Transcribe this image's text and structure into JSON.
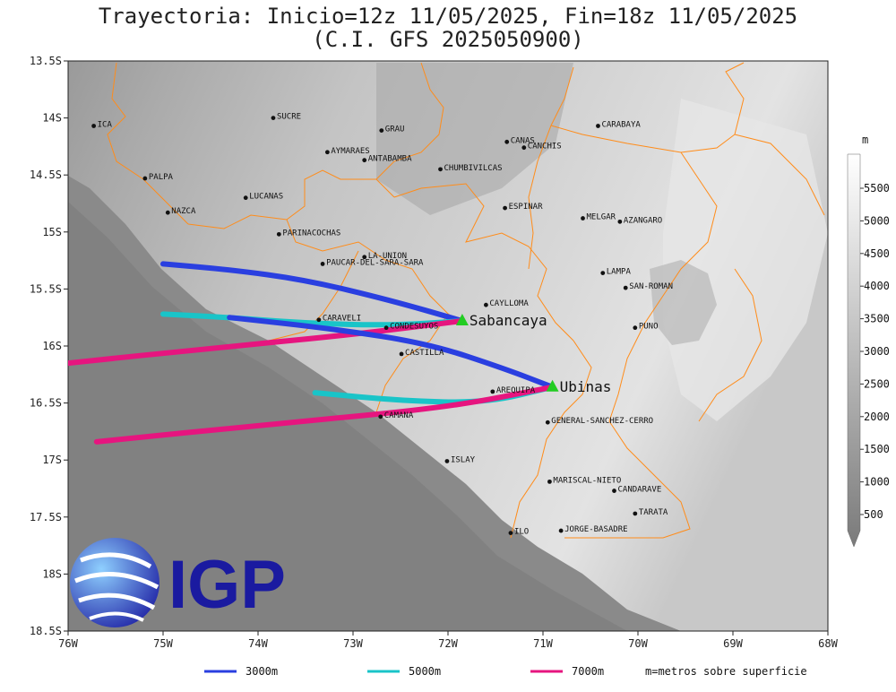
{
  "title": {
    "line1": "Trayectoria: Inicio=12z 11/05/2025, Fin=18z 11/05/2025",
    "line2": "(C.I. GFS 2025050900)"
  },
  "map": {
    "lon_range": [
      -76,
      -68
    ],
    "lat_range": [
      -18.5,
      -13.5
    ],
    "x_ticks": [
      "76W",
      "75W",
      "74W",
      "73W",
      "72W",
      "71W",
      "70W",
      "69W",
      "68W"
    ],
    "y_ticks": [
      "13.5S",
      "14S",
      "14.5S",
      "15S",
      "15.5S",
      "16S",
      "16.5S",
      "17S",
      "17.5S",
      "18S",
      "18.5S"
    ],
    "places": [
      {
        "name": "ICA",
        "lon": -75.73,
        "lat": -14.07
      },
      {
        "name": "SUCRE",
        "lon": -73.84,
        "lat": -14.0
      },
      {
        "name": "GRAU",
        "lon": -72.7,
        "lat": -14.11
      },
      {
        "name": "AYMARAES",
        "lon": -73.27,
        "lat": -14.3
      },
      {
        "name": "ANTABAMBA",
        "lon": -72.88,
        "lat": -14.37
      },
      {
        "name": "CHUMBIVILCAS",
        "lon": -72.08,
        "lat": -14.45
      },
      {
        "name": "CANAS",
        "lon": -71.38,
        "lat": -14.21
      },
      {
        "name": "CANCHIS",
        "lon": -71.2,
        "lat": -14.26
      },
      {
        "name": "CARABAYA",
        "lon": -70.42,
        "lat": -14.07
      },
      {
        "name": "PALPA",
        "lon": -75.19,
        "lat": -14.53
      },
      {
        "name": "LUCANAS",
        "lon": -74.13,
        "lat": -14.7
      },
      {
        "name": "NAZCA",
        "lon": -74.95,
        "lat": -14.83
      },
      {
        "name": "ESPINAR",
        "lon": -71.4,
        "lat": -14.79
      },
      {
        "name": "MELGAR",
        "lon": -70.58,
        "lat": -14.88
      },
      {
        "name": "AZANGARO",
        "lon": -70.19,
        "lat": -14.91
      },
      {
        "name": "PARINACOCHAS",
        "lon": -73.78,
        "lat": -15.02
      },
      {
        "name": "LA-UNION",
        "lon": -72.88,
        "lat": -15.22
      },
      {
        "name": "PAUCAR-DEL-SARA-SARA",
        "lon": -73.32,
        "lat": -15.28
      },
      {
        "name": "LAMPA",
        "lon": -70.37,
        "lat": -15.36
      },
      {
        "name": "SAN-ROMAN",
        "lon": -70.13,
        "lat": -15.49
      },
      {
        "name": "CAYLLOMA",
        "lon": -71.6,
        "lat": -15.64
      },
      {
        "name": "CARAVELI",
        "lon": -73.36,
        "lat": -15.77
      },
      {
        "name": "CONDESUYOS",
        "lon": -72.65,
        "lat": -15.84
      },
      {
        "name": "PUNO",
        "lon": -70.03,
        "lat": -15.84
      },
      {
        "name": "CASTILLA",
        "lon": -72.49,
        "lat": -16.07
      },
      {
        "name": "AREQUIPA",
        "lon": -71.53,
        "lat": -16.4
      },
      {
        "name": "CAMANA",
        "lon": -72.71,
        "lat": -16.62
      },
      {
        "name": "GENERAL-SANCHEZ-CERRO",
        "lon": -70.95,
        "lat": -16.67
      },
      {
        "name": "ISLAY",
        "lon": -72.01,
        "lat": -17.01
      },
      {
        "name": "MARISCAL-NIETO",
        "lon": -70.93,
        "lat": -17.19
      },
      {
        "name": "CANDARAVE",
        "lon": -70.25,
        "lat": -17.27
      },
      {
        "name": "TARATA",
        "lon": -70.03,
        "lat": -17.47
      },
      {
        "name": "ILO",
        "lon": -71.34,
        "lat": -17.64
      },
      {
        "name": "JORGE-BASADRE",
        "lon": -70.81,
        "lat": -17.62
      }
    ],
    "volcanoes": [
      {
        "name": "Sabancaya",
        "lon": -71.85,
        "lat": -15.78
      },
      {
        "name": "Ubinas",
        "lon": -70.9,
        "lat": -16.36
      }
    ]
  },
  "trajectories": [
    {
      "volcano": "Sabancaya",
      "level": "3000m",
      "color": "#2a3fe0",
      "points": [
        [
          -71.85,
          -15.78
        ],
        [
          -72.6,
          -15.6
        ],
        [
          -73.5,
          -15.42
        ],
        [
          -74.3,
          -15.33
        ],
        [
          -75.0,
          -15.28
        ]
      ]
    },
    {
      "volcano": "Sabancaya",
      "level": "5000m",
      "color": "#19c4c8",
      "points": [
        [
          -71.85,
          -15.78
        ],
        [
          -72.6,
          -15.82
        ],
        [
          -73.5,
          -15.8
        ],
        [
          -74.3,
          -15.75
        ],
        [
          -75.0,
          -15.72
        ]
      ]
    },
    {
      "volcano": "Sabancaya",
      "level": "7000m",
      "color": "#e6157f",
      "points": [
        [
          -71.85,
          -15.78
        ],
        [
          -73.0,
          -15.9
        ],
        [
          -74.5,
          -16.02
        ],
        [
          -76.0,
          -16.15
        ]
      ]
    },
    {
      "volcano": "Ubinas",
      "level": "3000m",
      "color": "#2a3fe0",
      "points": [
        [
          -70.9,
          -16.36
        ],
        [
          -71.4,
          -16.2
        ],
        [
          -72.2,
          -15.98
        ],
        [
          -73.2,
          -15.85
        ],
        [
          -74.3,
          -15.75
        ]
      ]
    },
    {
      "volcano": "Ubinas",
      "level": "5000m",
      "color": "#19c4c8",
      "points": [
        [
          -70.9,
          -16.36
        ],
        [
          -71.6,
          -16.5
        ],
        [
          -72.5,
          -16.48
        ],
        [
          -73.4,
          -16.41
        ]
      ]
    },
    {
      "volcano": "Ubinas",
      "level": "7000m",
      "color": "#e6157f",
      "points": [
        [
          -70.9,
          -16.36
        ],
        [
          -72.0,
          -16.54
        ],
        [
          -73.8,
          -16.68
        ],
        [
          -75.7,
          -16.84
        ]
      ]
    }
  ],
  "colorbar": {
    "unit": "m",
    "labels": [
      "5500",
      "5000",
      "4500",
      "4000",
      "3500",
      "3000",
      "2500",
      "2000",
      "1500",
      "1000",
      "500"
    ]
  },
  "legend": {
    "items": [
      {
        "label": "3000m",
        "color": "#2a3fe0"
      },
      {
        "label": "5000m",
        "color": "#19c4c8"
      },
      {
        "label": "7000m",
        "color": "#e6157f"
      }
    ],
    "note": "m=metros sobre superficie"
  },
  "logo": {
    "text": "IGP"
  }
}
